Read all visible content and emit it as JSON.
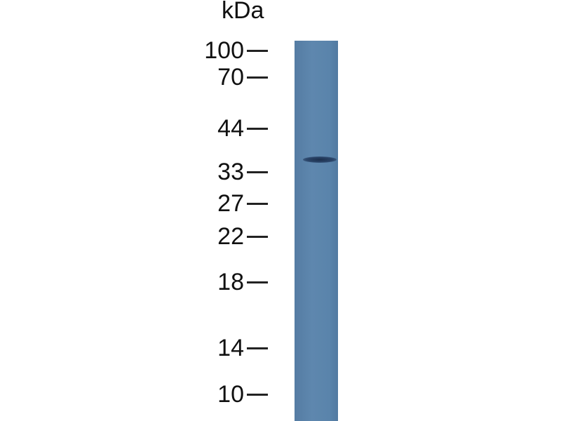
{
  "unit_label": "kDa",
  "markers": [
    "100",
    "70",
    "44",
    "33",
    "27",
    "22",
    "18",
    "14",
    "10"
  ],
  "lane_color": "#5a82a8",
  "band_color": "#1f3352"
}
